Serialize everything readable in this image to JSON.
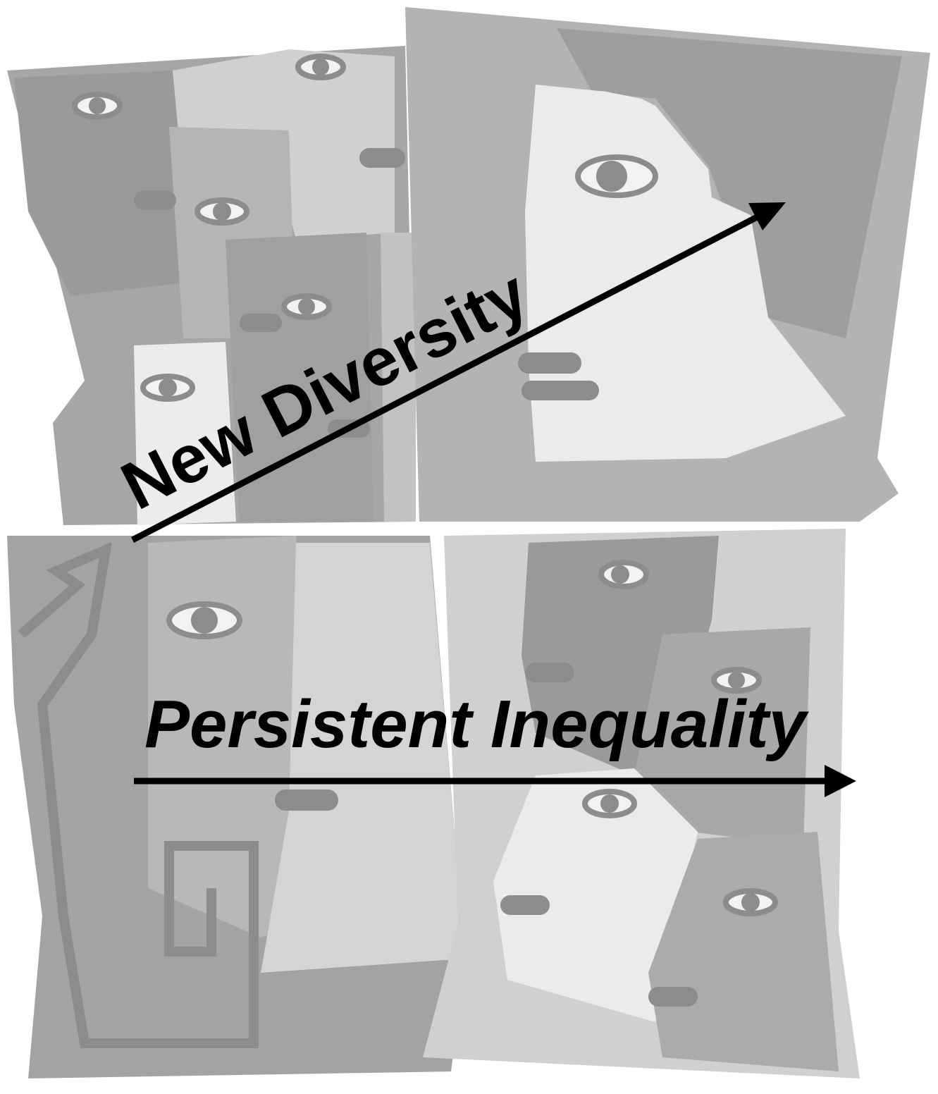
{
  "labels": {
    "diversity": "New Diversity",
    "inequality": "Persistent Inequality"
  }
}
